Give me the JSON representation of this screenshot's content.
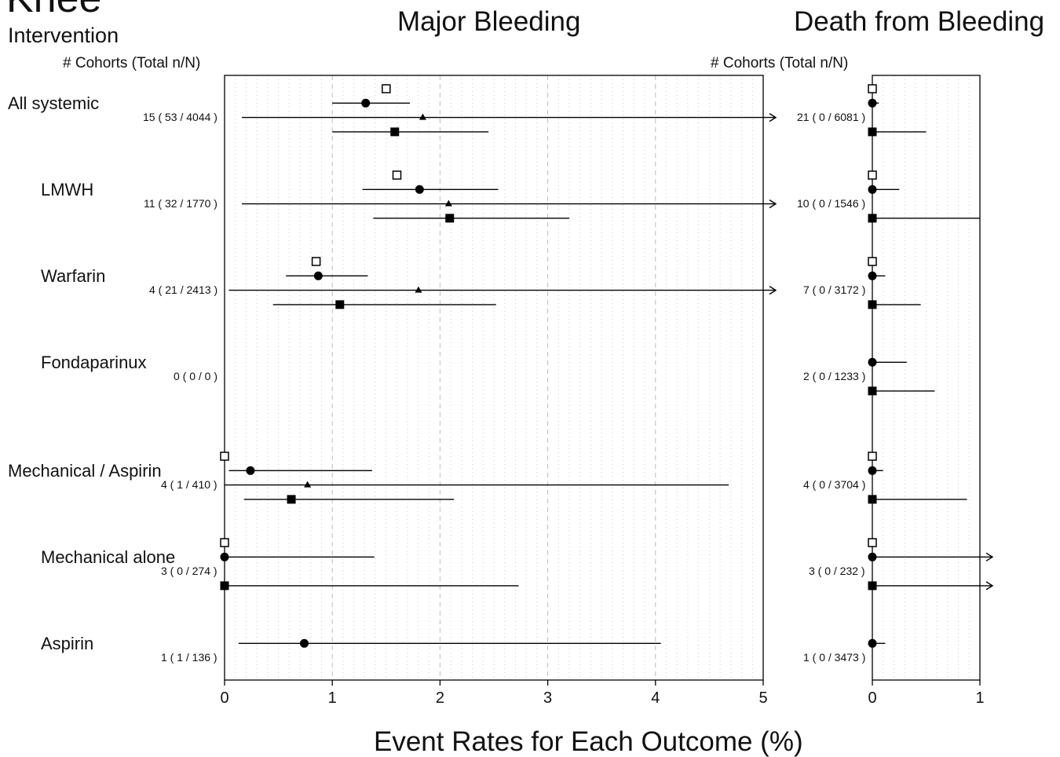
{
  "header": {
    "title": "Knee",
    "subtitle": "Intervention",
    "cohorts_header": "# Cohorts (Total n/N)",
    "xlabel": "Event Rates for Each Outcome (%)"
  },
  "chart_data": [
    {
      "type": "forest",
      "title": "Major Bleeding",
      "xlim": [
        0,
        5
      ],
      "x_ticks": [
        0,
        1,
        2,
        3,
        4,
        5
      ],
      "grid": "dashed major, dotted minor vertical",
      "rows": [
        {
          "label": "All systemic",
          "cohorts": "15 ( 53 / 4044 )",
          "estimates": [
            {
              "marker": "open-square",
              "value": 1.5
            },
            {
              "marker": "circle",
              "value": 1.31,
              "lo": 1.0,
              "hi": 1.72
            },
            {
              "marker": "triangle",
              "value": 1.84,
              "lo": 0.16,
              "hi": 5.0,
              "arrow": true
            },
            {
              "marker": "square",
              "value": 1.58,
              "lo": 1.0,
              "hi": 2.45
            }
          ]
        },
        {
          "label": "LMWH",
          "cohorts": "11 ( 32 / 1770 )",
          "estimates": [
            {
              "marker": "open-square",
              "value": 1.6
            },
            {
              "marker": "circle",
              "value": 1.81,
              "lo": 1.28,
              "hi": 2.54
            },
            {
              "marker": "triangle",
              "value": 2.08,
              "lo": 0.16,
              "hi": 5.0,
              "arrow": true
            },
            {
              "marker": "square",
              "value": 2.09,
              "lo": 1.38,
              "hi": 3.2
            }
          ]
        },
        {
          "label": "Warfarin",
          "cohorts": "4 ( 21 / 2413 )",
          "estimates": [
            {
              "marker": "open-square",
              "value": 0.85
            },
            {
              "marker": "circle",
              "value": 0.87,
              "lo": 0.57,
              "hi": 1.33
            },
            {
              "marker": "triangle",
              "value": 1.8,
              "lo": 0.04,
              "hi": 5.0,
              "arrow": true
            },
            {
              "marker": "square",
              "value": 1.07,
              "lo": 0.45,
              "hi": 2.52
            }
          ]
        },
        {
          "label": "Fondaparinux",
          "cohorts": "0 ( 0 / 0 )",
          "estimates": []
        },
        {
          "label": "Mechanical / Aspirin",
          "cohorts": "4 ( 1 / 410 )",
          "estimates": [
            {
              "marker": "open-square",
              "value": 0.0
            },
            {
              "marker": "circle",
              "value": 0.24,
              "lo": 0.04,
              "hi": 1.37
            },
            {
              "marker": "triangle",
              "value": 0.77,
              "lo": 0.0,
              "hi": 4.68
            },
            {
              "marker": "square",
              "value": 0.62,
              "lo": 0.18,
              "hi": 2.13
            }
          ]
        },
        {
          "label": "Mechanical alone",
          "cohorts": "3 ( 0 / 274 )",
          "estimates": [
            {
              "marker": "open-square",
              "value": 0.0
            },
            {
              "marker": "circle",
              "value": 0.0,
              "lo": 0.0,
              "hi": 1.39
            },
            {
              "marker": "square",
              "value": 0.0,
              "lo": 0.0,
              "hi": 2.73
            }
          ]
        },
        {
          "label": "Aspirin",
          "cohorts": "1 ( 1 / 136 )",
          "estimates": [
            {
              "marker": "circle",
              "value": 0.74,
              "lo": 0.13,
              "hi": 4.05
            }
          ]
        }
      ]
    },
    {
      "type": "forest",
      "title": "Death from Bleeding",
      "xlim": [
        0,
        1
      ],
      "x_ticks": [
        0,
        1
      ],
      "grid": "dotted minor vertical",
      "rows": [
        {
          "label": "All systemic",
          "cohorts": "21 ( 0 / 6081 )",
          "estimates": [
            {
              "marker": "open-square",
              "value": 0.0
            },
            {
              "marker": "circle",
              "value": 0.0,
              "lo": 0.0,
              "hi": 0.06
            },
            {
              "marker": "square",
              "value": 0.0,
              "lo": 0.0,
              "hi": 0.5
            }
          ]
        },
        {
          "label": "LMWH",
          "cohorts": "10 ( 0 / 1546 )",
          "estimates": [
            {
              "marker": "open-square",
              "value": 0.0
            },
            {
              "marker": "circle",
              "value": 0.0,
              "lo": 0.0,
              "hi": 0.25
            },
            {
              "marker": "square",
              "value": 0.0,
              "lo": 0.0,
              "hi": 1.0
            }
          ]
        },
        {
          "label": "Warfarin",
          "cohorts": "7 ( 0 / 3172 )",
          "estimates": [
            {
              "marker": "open-square",
              "value": 0.0
            },
            {
              "marker": "circle",
              "value": 0.0,
              "lo": 0.0,
              "hi": 0.12
            },
            {
              "marker": "square",
              "value": 0.0,
              "lo": 0.0,
              "hi": 0.45
            }
          ]
        },
        {
          "label": "Fondaparinux",
          "cohorts": "2 ( 0 / 1233 )",
          "estimates": [
            {
              "marker": "circle",
              "value": 0.0,
              "lo": 0.0,
              "hi": 0.32
            },
            {
              "marker": "square",
              "value": 0.0,
              "lo": 0.0,
              "hi": 0.58
            }
          ]
        },
        {
          "label": "Mechanical / Aspirin",
          "cohorts": "4 ( 0 / 3704 )",
          "estimates": [
            {
              "marker": "open-square",
              "value": 0.0
            },
            {
              "marker": "circle",
              "value": 0.0,
              "lo": 0.0,
              "hi": 0.1
            },
            {
              "marker": "square",
              "value": 0.0,
              "lo": 0.0,
              "hi": 0.88
            }
          ]
        },
        {
          "label": "Mechanical alone",
          "cohorts": "3 ( 0 / 232 )",
          "estimates": [
            {
              "marker": "open-square",
              "value": 0.0
            },
            {
              "marker": "circle",
              "value": 0.0,
              "lo": 0.0,
              "hi": 1.0,
              "arrow": true
            },
            {
              "marker": "square",
              "value": 0.0,
              "lo": 0.0,
              "hi": 1.0,
              "arrow": true
            }
          ]
        },
        {
          "label": "Aspirin",
          "cohorts": "1 ( 0 / 3473 )",
          "estimates": [
            {
              "marker": "circle",
              "value": 0.0,
              "lo": 0.0,
              "hi": 0.12
            }
          ]
        }
      ]
    }
  ]
}
